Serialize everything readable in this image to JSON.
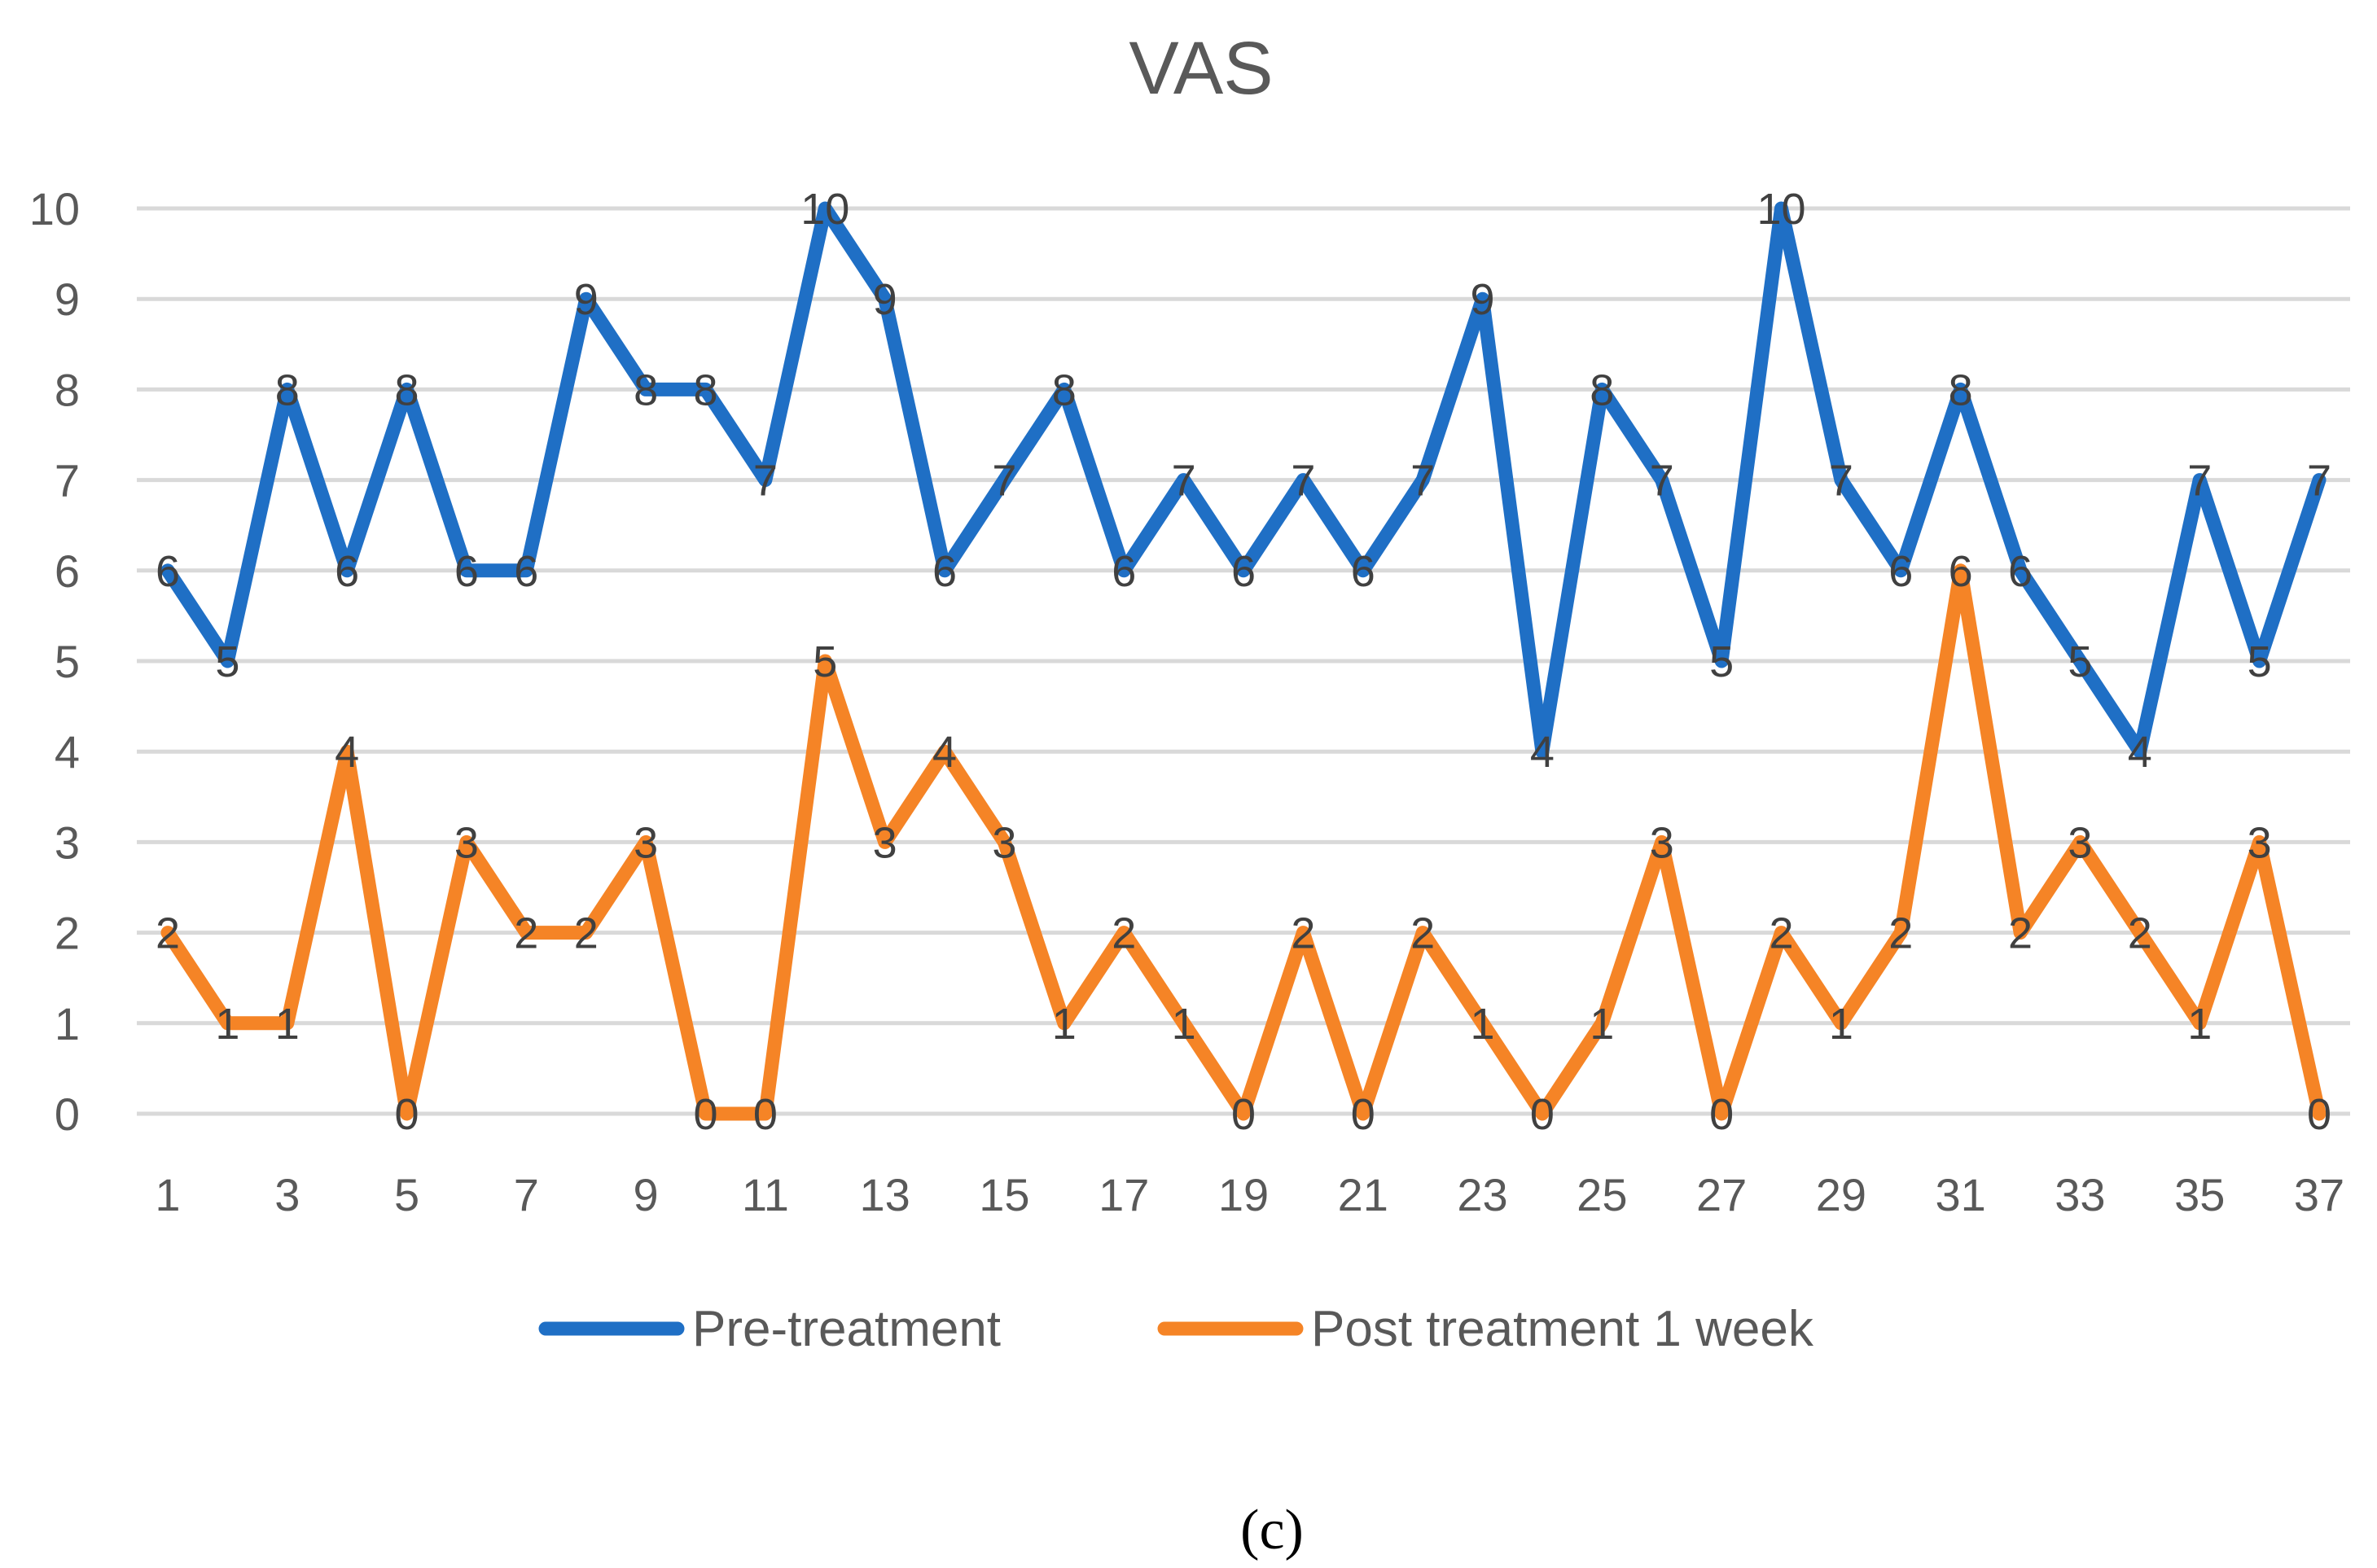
{
  "chart_data": {
    "type": "line",
    "title": "VAS",
    "caption": "(c)",
    "xlabel": "",
    "ylabel": "",
    "ylim": [
      0,
      10
    ],
    "yticks": [
      "0",
      "1",
      "2",
      "3",
      "4",
      "5",
      "6",
      "7",
      "8",
      "9",
      "10"
    ],
    "x": [
      1,
      2,
      3,
      4,
      5,
      6,
      7,
      8,
      9,
      10,
      11,
      12,
      13,
      14,
      15,
      16,
      17,
      18,
      19,
      20,
      21,
      22,
      23,
      24,
      25,
      26,
      27,
      28,
      29,
      30,
      31,
      32,
      33,
      34,
      35,
      36,
      37
    ],
    "xticks": [
      "1",
      "3",
      "5",
      "7",
      "9",
      "11",
      "13",
      "15",
      "17",
      "19",
      "21",
      "23",
      "25",
      "27",
      "29",
      "31",
      "33",
      "35",
      "37"
    ],
    "grid": true,
    "legend_position": "bottom",
    "series": [
      {
        "name": "Pre-treatment",
        "color": "#1f6fc5",
        "values": [
          6,
          5,
          8,
          6,
          8,
          6,
          6,
          9,
          8,
          8,
          7,
          10,
          9,
          6,
          7,
          8,
          6,
          7,
          6,
          7,
          6,
          7,
          9,
          4,
          8,
          7,
          5,
          10,
          7,
          6,
          8,
          6,
          5,
          4,
          7,
          5,
          7
        ]
      },
      {
        "name": "Post treatment 1 week",
        "color": "#f58426",
        "values": [
          2,
          1,
          1,
          4,
          0,
          3,
          2,
          2,
          3,
          0,
          0,
          5,
          3,
          4,
          3,
          1,
          2,
          1,
          0,
          2,
          0,
          2,
          1,
          0,
          1,
          3,
          0,
          2,
          1,
          2,
          6,
          2,
          3,
          2,
          1,
          3,
          0
        ]
      }
    ]
  }
}
